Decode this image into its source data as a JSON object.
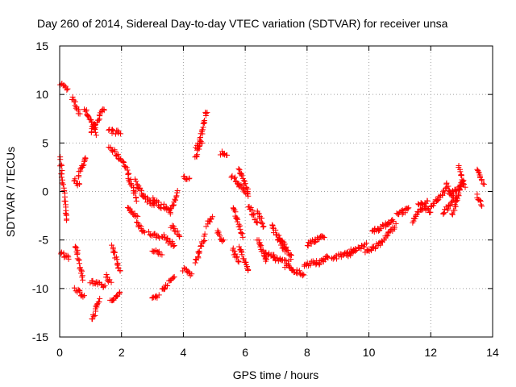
{
  "chart_data": {
    "type": "scatter",
    "title": "Day 260 of 2014, Sidereal Day-to-day VTEC variation (SDTVAR) for receiver unsa",
    "xlabel": "GPS time / hours",
    "ylabel": "SDTVAR / TECUs",
    "xlim": [
      0,
      14
    ],
    "ylim": [
      -15,
      15
    ],
    "xticks": [
      "0",
      "2",
      "4",
      "6",
      "8",
      "10",
      "12",
      "14"
    ],
    "yticks": [
      "15",
      "10",
      "5",
      "0",
      "-5",
      "-10",
      "-15"
    ],
    "xtick_values": [
      0,
      2,
      4,
      6,
      8,
      10,
      12,
      14
    ],
    "ytick_values": [
      15,
      10,
      5,
      0,
      -5,
      -10,
      -15
    ],
    "grid": true,
    "marker": "+",
    "marker_color": "#ff0000",
    "segments": [
      {
        "x": [
          0.0,
          0.25
        ],
        "y": [
          11.2,
          10.6
        ]
      },
      {
        "x": [
          0.4,
          0.65
        ],
        "y": [
          9.6,
          8.0
        ]
      },
      {
        "x": [
          0.8,
          1.2
        ],
        "y": [
          8.6,
          6.0
        ]
      },
      {
        "x": [
          1.0,
          1.45
        ],
        "y": [
          6.2,
          8.5
        ]
      },
      {
        "x": [
          1.6,
          1.95
        ],
        "y": [
          6.3,
          6.0
        ]
      },
      {
        "x": [
          1.6,
          2.0
        ],
        "y": [
          4.6,
          3.2
        ]
      },
      {
        "x": [
          2.05,
          2.5
        ],
        "y": [
          3.2,
          -0.8
        ]
      },
      {
        "x": [
          2.45,
          2.7
        ],
        "y": [
          1.2,
          -0.6
        ]
      },
      {
        "x": [
          2.7,
          3.05
        ],
        "y": [
          -0.6,
          -1.4
        ]
      },
      {
        "x": [
          3.0,
          3.3
        ],
        "y": [
          -0.7,
          -1.6
        ]
      },
      {
        "x": [
          3.35,
          3.6
        ],
        "y": [
          -1.4,
          -2.2
        ]
      },
      {
        "x": [
          3.6,
          3.8
        ],
        "y": [
          -1.8,
          -0.1
        ]
      },
      {
        "x": [
          0.0,
          0.25
        ],
        "y": [
          3.7,
          -3.0
        ]
      },
      {
        "x": [
          0.45,
          0.65
        ],
        "y": [
          1.3,
          0.6
        ]
      },
      {
        "x": [
          0.6,
          0.85
        ],
        "y": [
          1.6,
          3.6
        ]
      },
      {
        "x": [
          2.2,
          2.5
        ],
        "y": [
          -1.8,
          -2.6
        ]
      },
      {
        "x": [
          2.5,
          2.75
        ],
        "y": [
          -3.2,
          -4.2
        ]
      },
      {
        "x": [
          2.9,
          3.2
        ],
        "y": [
          -4.3,
          -4.7
        ]
      },
      {
        "x": [
          3.3,
          3.7
        ],
        "y": [
          -4.5,
          -5.6
        ]
      },
      {
        "x": [
          3.6,
          3.9
        ],
        "y": [
          -3.5,
          -4.6
        ]
      },
      {
        "x": [
          3.0,
          3.3
        ],
        "y": [
          -6.2,
          -6.4
        ]
      },
      {
        "x": [
          0.0,
          0.3
        ],
        "y": [
          -6.3,
          -6.8
        ]
      },
      {
        "x": [
          0.5,
          0.75
        ],
        "y": [
          -5.5,
          -9.0
        ]
      },
      {
        "x": [
          0.5,
          0.8
        ],
        "y": [
          -10.0,
          -10.8
        ]
      },
      {
        "x": [
          1.0,
          1.45
        ],
        "y": [
          -9.3,
          -9.8
        ]
      },
      {
        "x": [
          1.05,
          1.3
        ],
        "y": [
          -13.2,
          -11.0
        ]
      },
      {
        "x": [
          1.5,
          1.65
        ],
        "y": [
          -8.7,
          -9.4
        ]
      },
      {
        "x": [
          1.7,
          1.95
        ],
        "y": [
          -5.5,
          -8.2
        ]
      },
      {
        "x": [
          1.65,
          1.95
        ],
        "y": [
          -11.4,
          -10.5
        ]
      },
      {
        "x": [
          3.0,
          3.2
        ],
        "y": [
          -11.0,
          -10.7
        ]
      },
      {
        "x": [
          3.3,
          3.7
        ],
        "y": [
          -10.2,
          -8.8
        ]
      },
      {
        "x": [
          4.0,
          4.2
        ],
        "y": [
          1.6,
          1.2
        ]
      },
      {
        "x": [
          4.4,
          4.75
        ],
        "y": [
          3.4,
          8.3
        ]
      },
      {
        "x": [
          4.4,
          4.6
        ],
        "y": [
          4.6,
          5.1
        ]
      },
      {
        "x": [
          4.0,
          4.25
        ],
        "y": [
          -8.0,
          -8.6
        ]
      },
      {
        "x": [
          4.4,
          4.7
        ],
        "y": [
          -7.3,
          -4.6
        ]
      },
      {
        "x": [
          4.75,
          4.95
        ],
        "y": [
          -3.4,
          -2.7
        ]
      },
      {
        "x": [
          5.2,
          5.4
        ],
        "y": [
          4.0,
          3.6
        ]
      },
      {
        "x": [
          5.1,
          5.3
        ],
        "y": [
          -4.2,
          -5.1
        ]
      },
      {
        "x": [
          5.55,
          6.1
        ],
        "y": [
          1.6,
          -0.4
        ]
      },
      {
        "x": [
          5.8,
          6.1
        ],
        "y": [
          2.3,
          0.0
        ]
      },
      {
        "x": [
          5.6,
          5.9
        ],
        "y": [
          -1.6,
          -4.6
        ]
      },
      {
        "x": [
          5.6,
          5.8
        ],
        "y": [
          -6.0,
          -7.2
        ]
      },
      {
        "x": [
          5.8,
          6.1
        ],
        "y": [
          -5.7,
          -8.2
        ]
      },
      {
        "x": [
          6.1,
          6.4
        ],
        "y": [
          -1.5,
          -3.2
        ]
      },
      {
        "x": [
          6.4,
          6.6
        ],
        "y": [
          -2.1,
          -3.7
        ]
      },
      {
        "x": [
          6.4,
          6.7
        ],
        "y": [
          -4.9,
          -7.2
        ]
      },
      {
        "x": [
          6.6,
          7.0
        ],
        "y": [
          -6.4,
          -6.8
        ]
      },
      {
        "x": [
          6.85,
          7.3
        ],
        "y": [
          -3.6,
          -6.1
        ]
      },
      {
        "x": [
          7.1,
          7.5
        ],
        "y": [
          -4.6,
          -6.8
        ]
      },
      {
        "x": [
          7.3,
          7.9
        ],
        "y": [
          -7.7,
          -8.6
        ]
      },
      {
        "x": [
          6.9,
          7.4
        ],
        "y": [
          -6.8,
          -7.4
        ]
      },
      {
        "x": [
          7.9,
          8.3
        ],
        "y": [
          -7.6,
          -7.2
        ]
      },
      {
        "x": [
          8.0,
          8.55
        ],
        "y": [
          -5.5,
          -4.6
        ]
      },
      {
        "x": [
          8.3,
          8.7
        ],
        "y": [
          -7.6,
          -6.7
        ]
      },
      {
        "x": [
          8.8,
          9.5
        ],
        "y": [
          -7.0,
          -6.0
        ]
      },
      {
        "x": [
          9.3,
          9.9
        ],
        "y": [
          -6.6,
          -5.5
        ]
      },
      {
        "x": [
          9.9,
          10.25
        ],
        "y": [
          -6.2,
          -5.6
        ]
      },
      {
        "x": [
          10.1,
          10.8
        ],
        "y": [
          -4.2,
          -3.0
        ]
      },
      {
        "x": [
          10.3,
          10.85
        ],
        "y": [
          -5.6,
          -3.5
        ]
      },
      {
        "x": [
          10.9,
          11.3
        ],
        "y": [
          -2.4,
          -1.8
        ]
      },
      {
        "x": [
          11.4,
          11.9
        ],
        "y": [
          -3.0,
          -1.0
        ]
      },
      {
        "x": [
          11.6,
          12.0
        ],
        "y": [
          -1.2,
          -2.1
        ]
      },
      {
        "x": [
          12.0,
          12.5
        ],
        "y": [
          -1.5,
          0.2
        ]
      },
      {
        "x": [
          12.4,
          12.8
        ],
        "y": [
          -2.2,
          -0.5
        ]
      },
      {
        "x": [
          12.5,
          12.7
        ],
        "y": [
          0.8,
          -0.6
        ]
      },
      {
        "x": [
          12.6,
          13.0
        ],
        "y": [
          -0.4,
          0.6
        ]
      },
      {
        "x": [
          12.7,
          13.05
        ],
        "y": [
          -2.4,
          1.3
        ]
      },
      {
        "x": [
          12.9,
          13.1
        ],
        "y": [
          2.6,
          0.5
        ]
      },
      {
        "x": [
          13.5,
          13.7
        ],
        "y": [
          2.3,
          0.8
        ]
      },
      {
        "x": [
          13.5,
          13.65
        ],
        "y": [
          -0.4,
          -1.4
        ]
      }
    ]
  }
}
